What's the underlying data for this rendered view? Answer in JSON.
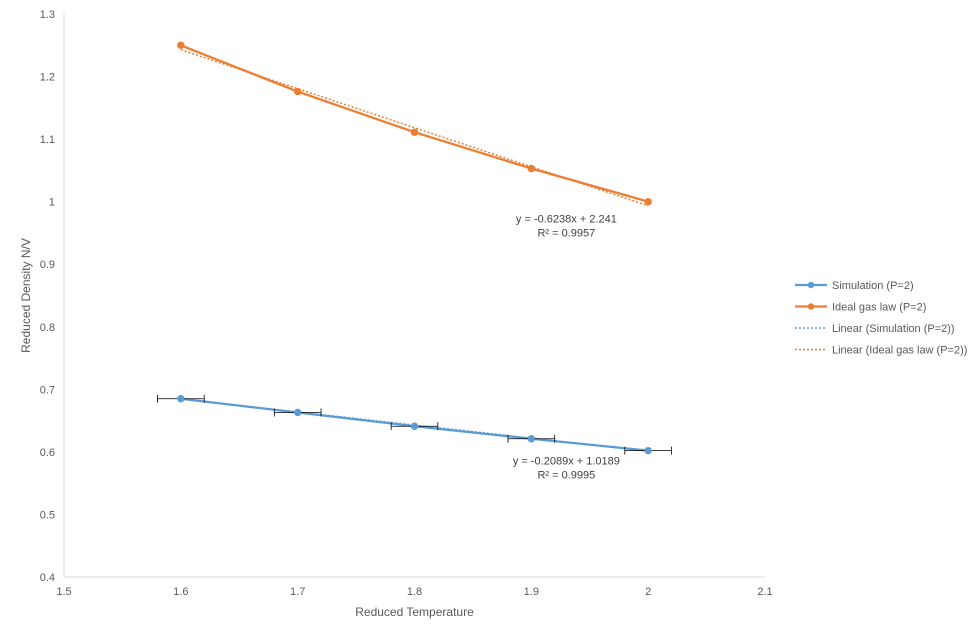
{
  "chart_data": {
    "type": "scatter",
    "title": "",
    "xlabel": "Reduced Temperature",
    "ylabel": "Reduced Density N/V",
    "xlim": [
      1.5,
      2.1
    ],
    "ylim": [
      0.4,
      1.3
    ],
    "x_ticks": [
      "1.5",
      "1.6",
      "1.7",
      "1.8",
      "1.9",
      "2",
      "2.1"
    ],
    "y_ticks": [
      "0.4",
      "0.5",
      "0.6",
      "0.7",
      "0.8",
      "0.9",
      "1",
      "1.1",
      "1.2",
      "1.3"
    ],
    "x_tick_values": [
      1.5,
      1.6,
      1.7,
      1.8,
      1.9,
      2.0,
      2.1
    ],
    "y_tick_values": [
      0.4,
      0.5,
      0.6,
      0.7,
      0.8,
      0.9,
      1.0,
      1.1,
      1.2,
      1.3
    ],
    "grid": false,
    "legend_position": "right",
    "series": [
      {
        "name": "Simulation (P=2)",
        "color": "#5B9BD5",
        "style": "line-markers",
        "x": [
          1.6,
          1.7,
          1.8,
          1.9,
          2.0
        ],
        "y": [
          0.685,
          0.663,
          0.641,
          0.621,
          0.602
        ],
        "x_error": 0.02
      },
      {
        "name": "Ideal gas law (P=2)",
        "color": "#ED7D31",
        "style": "line-markers",
        "x": [
          1.6,
          1.7,
          1.8,
          1.9,
          2.0
        ],
        "y": [
          1.25,
          1.176,
          1.111,
          1.053,
          1.0
        ]
      }
    ],
    "trendlines": [
      {
        "name": "Linear (Simulation (P=2))",
        "color": "#5B9BD5",
        "slope": -0.2089,
        "intercept": 1.0189,
        "x_range": [
          1.6,
          2.0
        ],
        "equation": "y = -0.2089x + 1.0189",
        "r2": "R² = 0.9995",
        "label_at": [
          1.93,
          0.58
        ]
      },
      {
        "name": "Linear (Ideal gas law (P=2))",
        "color": "#ED7D31",
        "slope": -0.6238,
        "intercept": 2.241,
        "x_range": [
          1.6,
          2.0
        ],
        "equation": "y = -0.6238x + 2.241",
        "r2": "R² = 0.9957",
        "label_at": [
          1.93,
          0.967
        ]
      }
    ]
  }
}
